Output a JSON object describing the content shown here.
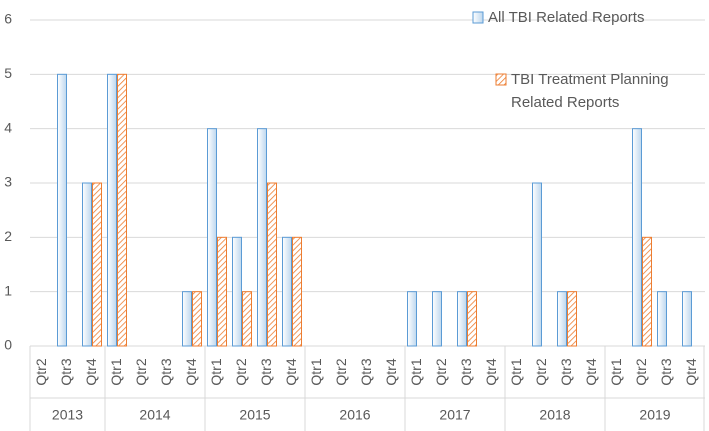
{
  "chart_data": {
    "type": "bar",
    "year_groups": [
      {
        "label": "2013",
        "quarters": [
          "Qtr2",
          "Qtr3",
          "Qtr4"
        ]
      },
      {
        "label": "2014",
        "quarters": [
          "Qtr1",
          "Qtr2",
          "Qtr3",
          "Qtr4"
        ]
      },
      {
        "label": "2015",
        "quarters": [
          "Qtr1",
          "Qtr2",
          "Qtr3",
          "Qtr4"
        ]
      },
      {
        "label": "2016",
        "quarters": [
          "Qtr1",
          "Qtr2",
          "Qtr3",
          "Qtr4"
        ]
      },
      {
        "label": "2017",
        "quarters": [
          "Qtr1",
          "Qtr2",
          "Qtr3",
          "Qtr4"
        ]
      },
      {
        "label": "2018",
        "quarters": [
          "Qtr1",
          "Qtr2",
          "Qtr3",
          "Qtr4"
        ]
      },
      {
        "label": "2019",
        "quarters": [
          "Qtr1",
          "Qtr2",
          "Qtr3",
          "Qtr4"
        ]
      }
    ],
    "series": [
      {
        "name": "All TBI Related Reports",
        "color": "#5b9bd5",
        "fill": "gradient",
        "values": [
          0,
          5,
          3,
          5,
          0,
          0,
          1,
          4,
          2,
          4,
          2,
          0,
          0,
          0,
          0,
          1,
          1,
          1,
          0,
          0,
          3,
          1,
          0,
          0,
          4,
          1,
          1
        ]
      },
      {
        "name": "TBI Treatment Planning Related Reports",
        "color": "#ed7d31",
        "fill": "hatch",
        "values": [
          0,
          0,
          3,
          5,
          0,
          0,
          1,
          2,
          1,
          3,
          2,
          0,
          0,
          0,
          0,
          0,
          0,
          1,
          0,
          0,
          0,
          1,
          0,
          0,
          2,
          0,
          0
        ]
      }
    ],
    "ylim": [
      0,
      6
    ],
    "yticks": [
      0,
      1,
      2,
      3,
      4,
      5,
      6
    ],
    "grid": true,
    "legend": "upper right"
  }
}
